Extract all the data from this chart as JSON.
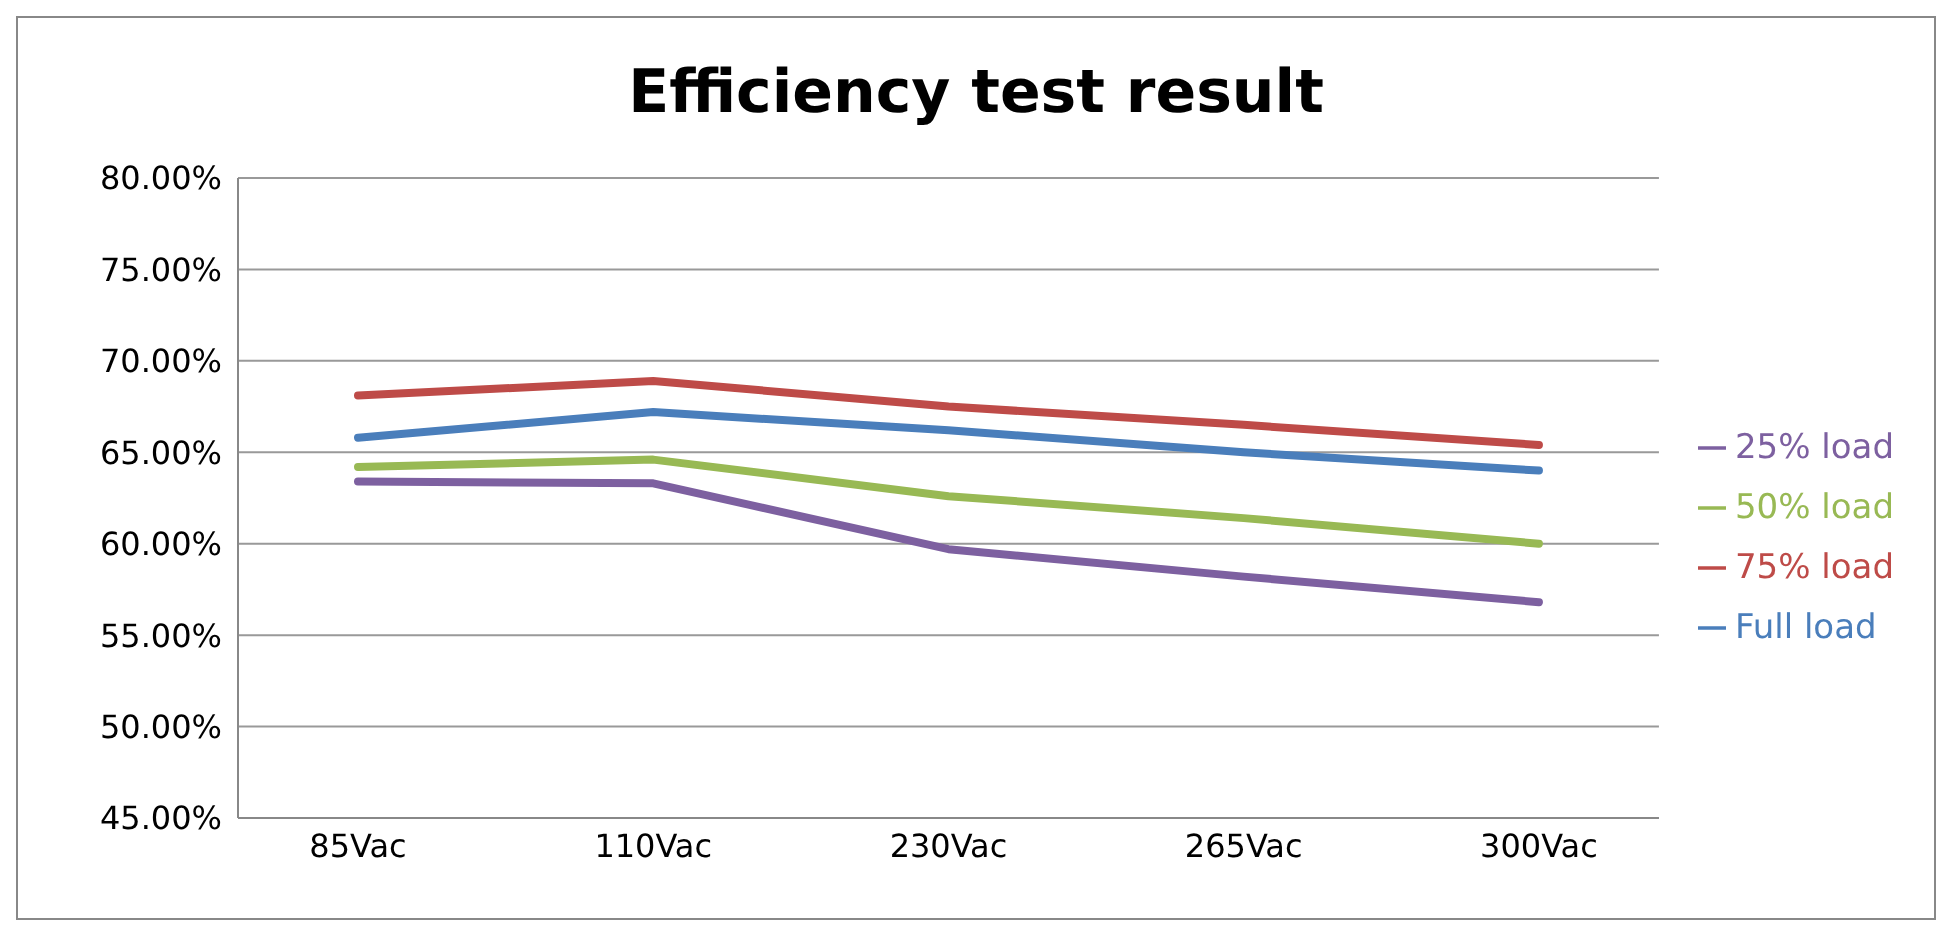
{
  "chart_data": {
    "type": "line",
    "title": "Efficiency test result",
    "categories": [
      "85Vac",
      "110Vac",
      "230Vac",
      "265Vac",
      "300Vac"
    ],
    "series": [
      {
        "name": "Full load",
        "color": "#4a7ebb",
        "values": [
          65.8,
          67.2,
          66.2,
          65.0,
          64.0
        ]
      },
      {
        "name": "75% load",
        "color": "#be4b48",
        "values": [
          68.1,
          68.9,
          67.5,
          66.5,
          65.4
        ]
      },
      {
        "name": "50% load",
        "color": "#98b954",
        "values": [
          64.2,
          64.6,
          62.6,
          61.4,
          60.0
        ]
      },
      {
        "name": "25% load",
        "color": "#7d60a0",
        "values": [
          63.4,
          63.3,
          59.7,
          58.2,
          56.8
        ]
      }
    ],
    "ylim": [
      45,
      80
    ],
    "yticks": [
      {
        "value": 45,
        "label": "45.00%"
      },
      {
        "value": 50,
        "label": "50.00%"
      },
      {
        "value": 55,
        "label": "55.00%"
      },
      {
        "value": 60,
        "label": "60.00%"
      },
      {
        "value": 65,
        "label": "65.00%"
      },
      {
        "value": 70,
        "label": "70.00%"
      },
      {
        "value": 75,
        "label": "75.00%"
      },
      {
        "value": 80,
        "label": "80.00%"
      }
    ],
    "grid": "y",
    "legend": "right",
    "marker": "none",
    "line_style": "solid"
  }
}
